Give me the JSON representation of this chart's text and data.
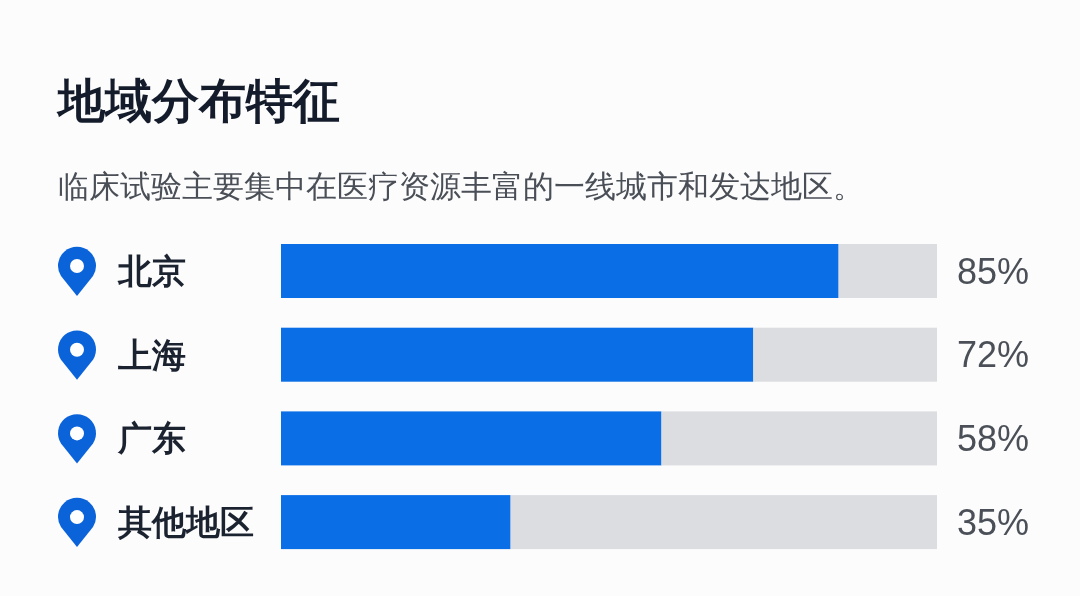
{
  "chart_data": {
    "type": "bar",
    "orientation": "horizontal",
    "stacked": true,
    "title": "地域分布特征",
    "subtitle": "临床试验主要集中在医疗资源丰富的一线城市和发达地区。",
    "categories": [
      "北京",
      "上海",
      "广东",
      "其他地区"
    ],
    "series": [
      {
        "color": "#0a6fe6",
        "values": [
          85,
          72,
          58,
          35
        ],
        "value_labels": [
          "85%",
          "72%",
          "58%",
          "35%"
        ]
      },
      {
        "color": "#dcdde0",
        "values": [
          15,
          28,
          42,
          65
        ]
      }
    ],
    "xlim": [
      0,
      100
    ]
  }
}
